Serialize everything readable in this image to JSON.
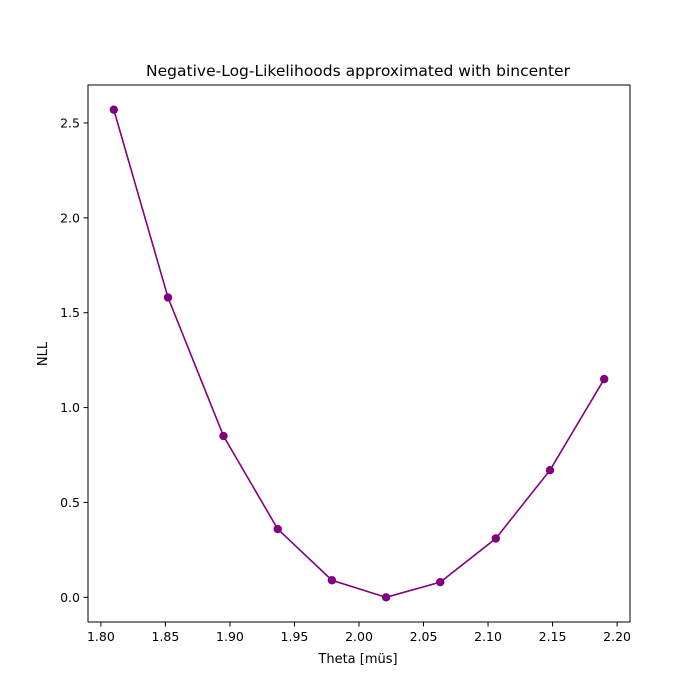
{
  "chart_data": {
    "type": "line",
    "title": "Negative-Log-Likelihoods approximated with bincenter",
    "xlabel": "Theta [müs]",
    "ylabel": "NLL",
    "xlim": [
      1.79,
      2.21
    ],
    "ylim": [
      -0.13,
      2.7
    ],
    "xticks": [
      {
        "value": 1.8,
        "label": "1.80"
      },
      {
        "value": 1.85,
        "label": "1.85"
      },
      {
        "value": 1.9,
        "label": "1.90"
      },
      {
        "value": 1.95,
        "label": "1.95"
      },
      {
        "value": 2.0,
        "label": "2.00"
      },
      {
        "value": 2.05,
        "label": "2.05"
      },
      {
        "value": 2.1,
        "label": "2.10"
      },
      {
        "value": 2.15,
        "label": "2.15"
      },
      {
        "value": 2.2,
        "label": "2.20"
      }
    ],
    "yticks": [
      {
        "value": 0.0,
        "label": "0.0"
      },
      {
        "value": 0.5,
        "label": "0.5"
      },
      {
        "value": 1.0,
        "label": "1.0"
      },
      {
        "value": 1.5,
        "label": "1.5"
      },
      {
        "value": 2.0,
        "label": "2.0"
      },
      {
        "value": 2.5,
        "label": "2.5"
      }
    ],
    "grid": false,
    "series": [
      {
        "color": "#800080",
        "marker": "circle",
        "x": [
          1.81,
          1.852,
          1.895,
          1.937,
          1.979,
          2.021,
          2.063,
          2.106,
          2.148,
          2.19
        ],
        "y": [
          2.57,
          1.58,
          0.85,
          0.36,
          0.09,
          0.0,
          0.08,
          0.31,
          0.67,
          1.15
        ]
      }
    ]
  }
}
